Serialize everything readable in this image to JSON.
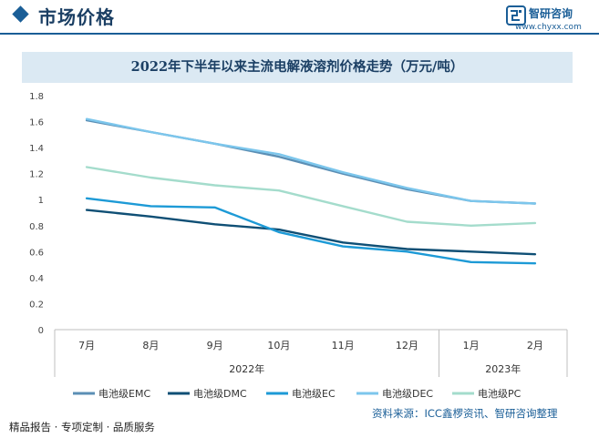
{
  "header": {
    "title": "市场价格",
    "logo_name": "智研咨询",
    "logo_url": "www.chyxx.com"
  },
  "footer": {
    "left_text": "精品报告 · 专项定制 · 品质服务",
    "source_text": "资料来源：ICC鑫椤资讯、智研咨询整理"
  },
  "colors": {
    "EMC": "#5b8fb5",
    "DMC": "#0f4f75",
    "EC": "#1d9ad6",
    "DEC": "#7cc6ec",
    "PC": "#a4dccc"
  },
  "chart_data": {
    "type": "line",
    "title": "2022年下半年以来主流电解液溶剂价格走势（万元/吨）",
    "categories": [
      "7月",
      "8月",
      "9月",
      "10月",
      "11月",
      "12月",
      "1月",
      "2月"
    ],
    "groups": [
      {
        "label": "2022年",
        "span": 6
      },
      {
        "label": "2023年",
        "span": 2
      }
    ],
    "ylim": [
      0,
      1.8
    ],
    "yticks": [
      "0",
      "0.2",
      "0.4",
      "0.6",
      "0.8",
      "1",
      "1.2",
      "1.4",
      "1.6",
      "1.8"
    ],
    "grid": false,
    "legend_position": "bottom",
    "series": [
      {
        "name": "电池级EMC",
        "color_key": "EMC",
        "values": [
          1.61,
          1.52,
          1.43,
          1.33,
          1.2,
          1.08,
          0.99,
          0.97
        ]
      },
      {
        "name": "电池级DMC",
        "color_key": "DMC",
        "values": [
          0.92,
          0.87,
          0.81,
          0.77,
          0.67,
          0.62,
          0.6,
          0.58
        ]
      },
      {
        "name": "电池级EC",
        "color_key": "EC",
        "values": [
          1.01,
          0.95,
          0.94,
          0.75,
          0.64,
          0.6,
          0.52,
          0.51
        ]
      },
      {
        "name": "电池级DEC",
        "color_key": "DEC",
        "values": [
          1.62,
          1.52,
          1.43,
          1.35,
          1.21,
          1.09,
          0.99,
          0.97
        ]
      },
      {
        "name": "电池级PC",
        "color_key": "PC",
        "values": [
          1.25,
          1.17,
          1.11,
          1.07,
          0.95,
          0.83,
          0.8,
          0.82
        ]
      }
    ]
  }
}
